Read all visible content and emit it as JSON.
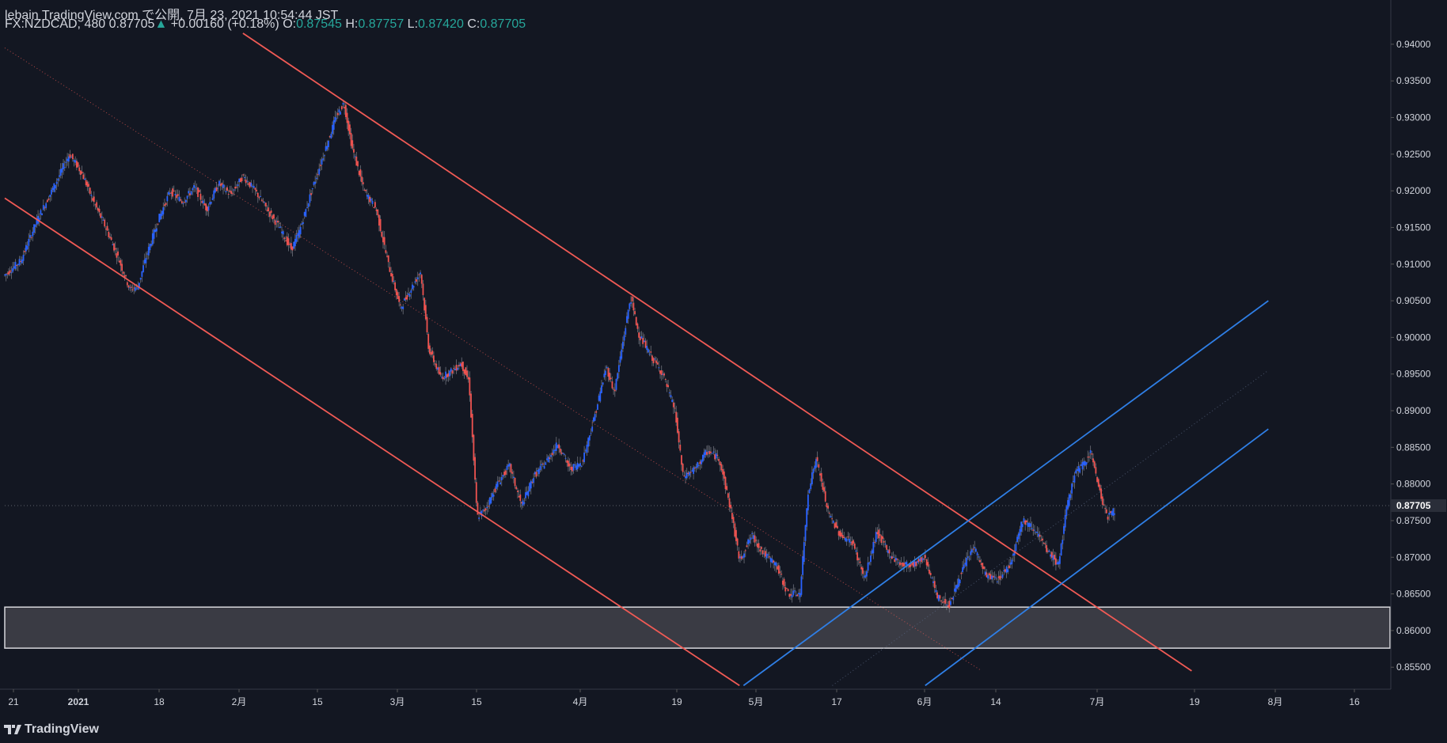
{
  "header": {
    "published_line": "lebain TradingView.com で公開, 7月 23, 2021 10:54:44 JST",
    "symbol": "FX:NZDCAD, 480",
    "last": "0.87705",
    "arrow": "▲",
    "change": "+0.00160 (+0.18%)",
    "o_label": "O:",
    "o_value": "0.87545",
    "h_label": "H:",
    "h_value": "0.87757",
    "l_label": "L:",
    "l_value": "0.87420",
    "c_label": "C:",
    "c_value": "0.87705"
  },
  "footer": {
    "brand": "TradingView"
  },
  "colors": {
    "background": "#131722",
    "up_candle": "#2962ff",
    "down_candle": "#ef5350",
    "red_channel": "#f05a55",
    "blue_channel": "#2f7fe6",
    "zone_fill": "#3a3b44",
    "zone_border": "#d8d8dc",
    "axis_text": "#d1d4dc",
    "last_price_bg": "#2a2e39"
  },
  "chart_data": {
    "type": "candlestick",
    "symbol": "FX:NZDCAD",
    "interval": "480",
    "x_ticks": [
      "21",
      "2021",
      "18",
      "2月",
      "15",
      "3月",
      "15",
      "4月",
      "19",
      "5月",
      "17",
      "6月",
      "14",
      "7月",
      "19",
      "8月",
      "16"
    ],
    "y_ticks": [
      "0.85500",
      "0.86000",
      "0.86500",
      "0.87000",
      "0.87500",
      "0.88000",
      "0.88500",
      "0.89000",
      "0.89500",
      "0.90000",
      "0.90500",
      "0.91000",
      "0.91500",
      "0.92000",
      "0.92500",
      "0.93000",
      "0.93500",
      "0.94000"
    ],
    "ylim": [
      0.852,
      0.9415
    ],
    "last_price": 0.87705,
    "last_price_label": "0.87705",
    "price_path": [
      [
        0,
        0.9085
      ],
      [
        4,
        0.9105
      ],
      [
        8,
        0.916
      ],
      [
        13,
        0.9215
      ],
      [
        16,
        0.925
      ],
      [
        19,
        0.9225
      ],
      [
        22,
        0.9185
      ],
      [
        25,
        0.915
      ],
      [
        28,
        0.911
      ],
      [
        31,
        0.9065
      ],
      [
        33,
        0.907
      ],
      [
        35,
        0.911
      ],
      [
        38,
        0.916
      ],
      [
        41,
        0.92
      ],
      [
        44,
        0.9185
      ],
      [
        47,
        0.9205
      ],
      [
        50,
        0.9175
      ],
      [
        53,
        0.921
      ],
      [
        56,
        0.9195
      ],
      [
        59,
        0.922
      ],
      [
        62,
        0.92
      ],
      [
        65,
        0.9175
      ],
      [
        68,
        0.915
      ],
      [
        71,
        0.912
      ],
      [
        73,
        0.9145
      ],
      [
        76,
        0.92
      ],
      [
        79,
        0.925
      ],
      [
        82,
        0.93
      ],
      [
        84,
        0.932
      ],
      [
        86,
        0.926
      ],
      [
        89,
        0.92
      ],
      [
        92,
        0.9175
      ],
      [
        95,
        0.91
      ],
      [
        98,
        0.904
      ],
      [
        101,
        0.907
      ],
      [
        103,
        0.909
      ],
      [
        105,
        0.8985
      ],
      [
        108,
        0.8945
      ],
      [
        111,
        0.8955
      ],
      [
        113,
        0.8965
      ],
      [
        115,
        0.894
      ],
      [
        117,
        0.8755
      ],
      [
        119,
        0.8765
      ],
      [
        122,
        0.88
      ],
      [
        125,
        0.8825
      ],
      [
        128,
        0.877
      ],
      [
        131,
        0.881
      ],
      [
        134,
        0.883
      ],
      [
        137,
        0.8855
      ],
      [
        140,
        0.882
      ],
      [
        143,
        0.883
      ],
      [
        146,
        0.889
      ],
      [
        149,
        0.896
      ],
      [
        151,
        0.8925
      ],
      [
        153,
        0.899
      ],
      [
        155,
        0.9055
      ],
      [
        157,
        0.9005
      ],
      [
        160,
        0.8975
      ],
      [
        163,
        0.895
      ],
      [
        166,
        0.89
      ],
      [
        168,
        0.881
      ],
      [
        171,
        0.882
      ],
      [
        174,
        0.8845
      ],
      [
        177,
        0.8835
      ],
      [
        180,
        0.876
      ],
      [
        182,
        0.8695
      ],
      [
        185,
        0.873
      ],
      [
        188,
        0.8705
      ],
      [
        191,
        0.869
      ],
      [
        194,
        0.865
      ],
      [
        197,
        0.865
      ],
      [
        199,
        0.879
      ],
      [
        201,
        0.8835
      ],
      [
        204,
        0.876
      ],
      [
        207,
        0.873
      ],
      [
        210,
        0.872
      ],
      [
        213,
        0.867
      ],
      [
        216,
        0.8735
      ],
      [
        219,
        0.8705
      ],
      [
        222,
        0.869
      ],
      [
        225,
        0.869
      ],
      [
        228,
        0.87
      ],
      [
        231,
        0.8645
      ],
      [
        234,
        0.8635
      ],
      [
        237,
        0.868
      ],
      [
        240,
        0.8715
      ],
      [
        243,
        0.8675
      ],
      [
        246,
        0.867
      ],
      [
        249,
        0.869
      ],
      [
        252,
        0.875
      ],
      [
        255,
        0.874
      ],
      [
        258,
        0.871
      ],
      [
        261,
        0.869
      ],
      [
        263,
        0.8765
      ],
      [
        265,
        0.8815
      ],
      [
        267,
        0.8825
      ],
      [
        269,
        0.8845
      ],
      [
        271,
        0.8795
      ],
      [
        273,
        0.8755
      ],
      [
        275,
        0.8765
      ]
    ],
    "annotations": {
      "red_channel_lines": [
        {
          "from": [
            0,
            0.919
          ],
          "to": [
            182,
            0.8525
          ]
        },
        {
          "from": [
            59,
            0.9415
          ],
          "to": [
            294,
            0.8545
          ]
        }
      ],
      "red_median_dotted": {
        "from": [
          0,
          0.9395
        ],
        "to": [
          242,
          0.8545
        ]
      },
      "blue_channel_lines": [
        {
          "from": [
            183,
            0.8525
          ],
          "to": [
            313,
            0.905
          ]
        },
        {
          "from": [
            228,
            0.8525
          ],
          "to": [
            313,
            0.8875
          ]
        }
      ],
      "blue_median_dotted": {
        "from": [
          205,
          0.8525
        ],
        "to": [
          313,
          0.8955
        ]
      },
      "support_zone": {
        "top": 0.8632,
        "bottom": 0.8576
      }
    }
  }
}
